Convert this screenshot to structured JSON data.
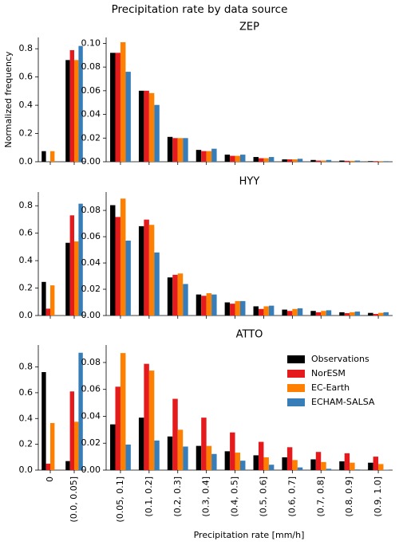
{
  "title": "Precipitation rate by data source",
  "ylabel": "Normalized frequency",
  "xlabel": "Precipitation rate [mm/h]",
  "chart_data": [
    {
      "type": "bar",
      "categories": [
        null,
        null
      ],
      "ylim": [
        0,
        0.88
      ],
      "yticks": [
        {
          "value": 0,
          "label": "0.0"
        },
        0.2,
        0.4,
        0.6,
        0.8
      ],
      "series": [
        {
          "color": "#000000",
          "values": [
            0.075,
            0.72
          ]
        },
        {
          "color": "#e41a1c",
          "values": [
            0,
            0.79
          ]
        },
        {
          "color": "#ff7f00",
          "values": [
            0.075,
            0.72
          ]
        },
        {
          "color": "#377eb8",
          "values": [
            0,
            0.82
          ]
        }
      ]
    },
    {
      "type": "bar",
      "title": "ZEP",
      "categories": [
        null,
        null,
        null,
        null,
        null,
        null,
        null,
        null,
        null,
        null
      ],
      "ylim": [
        0,
        0.105
      ],
      "yticks": [
        {
          "value": 0,
          "label": "0.00"
        },
        0.02,
        0.04,
        0.06,
        0.08,
        {
          "value": 0.1,
          "label": "0.10"
        }
      ],
      "series": [
        {
          "color": "#000000",
          "values": [
            0.092,
            0.06,
            0.021,
            0.01,
            0.006,
            0.004,
            0.002,
            0.0015,
            0.001,
            0.0005
          ]
        },
        {
          "color": "#e41a1c",
          "values": [
            0.092,
            0.06,
            0.02,
            0.009,
            0.005,
            0.003,
            0.002,
            0.001,
            0.0008,
            0.0005
          ]
        },
        {
          "color": "#ff7f00",
          "values": [
            0.101,
            0.058,
            0.02,
            0.009,
            0.005,
            0.003,
            0.002,
            0.001,
            0.0008,
            0.0005
          ]
        },
        {
          "color": "#377eb8",
          "values": [
            0.076,
            0.048,
            0.02,
            0.011,
            0.006,
            0.004,
            0.0025,
            0.0015,
            0.001,
            0.0005
          ]
        }
      ]
    },
    {
      "type": "bar",
      "categories": [
        null,
        null
      ],
      "ylim": [
        0,
        0.9
      ],
      "yticks": [
        {
          "value": 0,
          "label": "0.0"
        },
        0.2,
        0.4,
        0.6,
        0.8
      ],
      "series": [
        {
          "color": "#000000",
          "values": [
            0.245,
            0.53
          ]
        },
        {
          "color": "#e41a1c",
          "values": [
            0.05,
            0.73
          ]
        },
        {
          "color": "#ff7f00",
          "values": [
            0.22,
            0.54
          ]
        },
        {
          "color": "#377eb8",
          "values": [
            0,
            0.815
          ]
        }
      ]
    },
    {
      "type": "bar",
      "title": "HYY",
      "categories": [
        null,
        null,
        null,
        null,
        null,
        null,
        null,
        null,
        null,
        null
      ],
      "ylim": [
        0,
        0.094
      ],
      "yticks": [
        {
          "value": 0,
          "label": "0.00"
        },
        0.02,
        0.04,
        0.06,
        0.08
      ],
      "series": [
        {
          "color": "#000000",
          "values": [
            0.084,
            0.068,
            0.029,
            0.016,
            0.01,
            0.007,
            0.0045,
            0.0035,
            0.0025,
            0.002
          ]
        },
        {
          "color": "#e41a1c",
          "values": [
            0.075,
            0.073,
            0.031,
            0.015,
            0.009,
            0.005,
            0.0035,
            0.0025,
            0.0018,
            0.0012
          ]
        },
        {
          "color": "#ff7f00",
          "values": [
            0.089,
            0.069,
            0.032,
            0.017,
            0.011,
            0.007,
            0.005,
            0.0035,
            0.0025,
            0.002
          ]
        },
        {
          "color": "#377eb8",
          "values": [
            0.057,
            0.048,
            0.024,
            0.016,
            0.011,
            0.0075,
            0.0055,
            0.004,
            0.003,
            0.0025
          ]
        }
      ]
    },
    {
      "type": "bar",
      "categories": [
        "0",
        "(0.0, 0.05]"
      ],
      "ylim": [
        0,
        0.97
      ],
      "yticks": [
        {
          "value": 0,
          "label": "0.0"
        },
        0.2,
        0.4,
        0.6,
        0.8
      ],
      "series": [
        {
          "color": "#000000",
          "values": [
            0.76,
            0.07
          ]
        },
        {
          "color": "#e41a1c",
          "values": [
            0.05,
            0.61
          ]
        },
        {
          "color": "#ff7f00",
          "values": [
            0.365,
            0.375
          ]
        },
        {
          "color": "#377eb8",
          "values": [
            0,
            0.91
          ]
        }
      ]
    },
    {
      "type": "bar",
      "title": "ATTO",
      "legend": "upper right",
      "categories": [
        "(0.05, 0.1]",
        "(0.1, 0.2]",
        "(0.2, 0.3]",
        "(0.3, 0.4]",
        "(0.4, 0.5]",
        "(0.5, 0.6]",
        "(0.6, 0.7]",
        "(0.7, 0.8]",
        "(0.8, 0.9]",
        "(0.9, 1.0]"
      ],
      "ylim": [
        0,
        0.093
      ],
      "yticks": [
        {
          "value": 0,
          "label": "0.00"
        },
        0.02,
        0.04,
        0.06,
        0.08
      ],
      "series": [
        {
          "name": "Observations",
          "color": "#000000",
          "values": [
            0.034,
            0.039,
            0.025,
            0.018,
            0.014,
            0.011,
            0.0095,
            0.008,
            0.0065,
            0.0055
          ]
        },
        {
          "name": "NorESM",
          "color": "#e41a1c",
          "values": [
            0.062,
            0.079,
            0.053,
            0.039,
            0.028,
            0.021,
            0.017,
            0.0135,
            0.0125,
            0.01
          ]
        },
        {
          "name": "EC-Earth",
          "color": "#ff7f00",
          "values": [
            0.087,
            0.074,
            0.03,
            0.018,
            0.013,
            0.0095,
            0.0075,
            0.006,
            0.0055,
            0.0045
          ]
        },
        {
          "name": "ECHAM-SALSA",
          "color": "#377eb8",
          "values": [
            0.019,
            0.022,
            0.0175,
            0.012,
            0.007,
            0.004,
            0.002,
            0.001,
            0.0005,
            0.0003
          ]
        }
      ]
    }
  ]
}
